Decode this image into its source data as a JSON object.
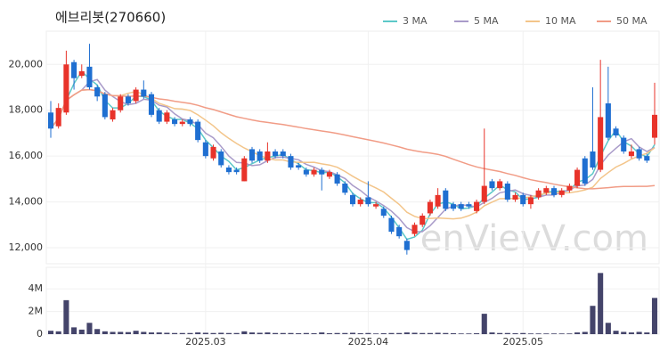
{
  "chart_data": {
    "type": "candlestick",
    "title": "에브리봇(270660)",
    "watermark": "enVievV.com",
    "categories": [
      null,
      null,
      null,
      null,
      null,
      null,
      null,
      null,
      null,
      null,
      null,
      null,
      null,
      null,
      null,
      null,
      null,
      null,
      null,
      null,
      "2025.03",
      null,
      null,
      null,
      null,
      null,
      null,
      null,
      null,
      null,
      null,
      null,
      null,
      null,
      null,
      null,
      null,
      null,
      null,
      null,
      null,
      "2025.04",
      null,
      null,
      null,
      null,
      null,
      null,
      null,
      null,
      null,
      null,
      null,
      null,
      null,
      null,
      null,
      null,
      null,
      null,
      null,
      "2025.05",
      null,
      null,
      null,
      null,
      null,
      null,
      null,
      null,
      null,
      null,
      null,
      null,
      null,
      null,
      null,
      null,
      null
    ],
    "open": [
      17900,
      17300,
      17900,
      20100,
      19500,
      19900,
      19000,
      18700,
      17600,
      18000,
      18600,
      18400,
      18900,
      18700,
      18000,
      17500,
      17600,
      17400,
      17600,
      17500,
      16600,
      15900,
      16200,
      15500,
      15400,
      14900,
      16300,
      16200,
      15800,
      16200,
      16200,
      16000,
      15600,
      15400,
      15200,
      15400,
      15100,
      15200,
      14800,
      14300,
      13900,
      14200,
      13800,
      13700,
      13300,
      12900,
      12300,
      12600,
      13000,
      13500,
      13800,
      14500,
      13900,
      13900,
      13900,
      13600,
      14000,
      14900,
      14600,
      14800,
      14100,
      14300,
      13900,
      14200,
      14400,
      14600,
      14300,
      14500,
      14700,
      15900,
      16200,
      15400,
      18300,
      17200,
      16800,
      16000,
      16300,
      16000,
      16800
    ],
    "close": [
      17200,
      18100,
      20000,
      19400,
      19700,
      19000,
      18600,
      17700,
      18000,
      18600,
      18300,
      18900,
      18600,
      17800,
      17500,
      17900,
      17400,
      17500,
      17400,
      16700,
      16000,
      16400,
      15600,
      15300,
      15300,
      15900,
      15800,
      15800,
      16200,
      16000,
      16000,
      15500,
      15500,
      15200,
      15400,
      15200,
      15300,
      14800,
      14400,
      13900,
      14100,
      13900,
      13900,
      13400,
      12700,
      12500,
      11900,
      13000,
      13400,
      14000,
      14300,
      13700,
      13700,
      13700,
      13800,
      14000,
      14700,
      14600,
      14900,
      14100,
      14300,
      13900,
      14200,
      14500,
      14600,
      14300,
      14500,
      14700,
      15400,
      14800,
      15500,
      17700,
      16800,
      16900,
      16200,
      16200,
      15900,
      15800,
      17800
    ],
    "high": [
      18400,
      18300,
      20600,
      20200,
      20000,
      20900,
      19100,
      18800,
      18100,
      18700,
      18700,
      19000,
      19300,
      18800,
      18100,
      18000,
      17700,
      17600,
      17700,
      17600,
      16700,
      16500,
      16300,
      15600,
      15500,
      16000,
      16400,
      16300,
      16600,
      16300,
      16300,
      16100,
      15700,
      15500,
      15500,
      15500,
      15400,
      15300,
      14900,
      14400,
      14200,
      14900,
      14000,
      13800,
      13400,
      13000,
      12400,
      13100,
      13500,
      14100,
      14600,
      14600,
      14000,
      14000,
      14000,
      14100,
      17200,
      15000,
      15000,
      14900,
      14400,
      14400,
      14300,
      14600,
      14700,
      14700,
      14600,
      14800,
      15500,
      16000,
      19000,
      20200,
      19900,
      17300,
      16900,
      16500,
      16400,
      16100,
      19200
    ],
    "low": [
      16800,
      17200,
      17800,
      18900,
      19400,
      18900,
      18400,
      17600,
      17500,
      17900,
      18200,
      18300,
      18500,
      17700,
      17400,
      17400,
      17300,
      17300,
      17300,
      16600,
      15900,
      15800,
      15500,
      15200,
      15200,
      14900,
      15700,
      15700,
      15700,
      15900,
      15900,
      15400,
      15400,
      15100,
      15100,
      14500,
      15000,
      14700,
      14300,
      13800,
      13800,
      13800,
      13700,
      13300,
      12600,
      12400,
      11700,
      12500,
      12900,
      13400,
      13700,
      13600,
      13600,
      13600,
      13700,
      13500,
      13900,
      14500,
      14500,
      14000,
      14000,
      13800,
      13700,
      14100,
      14300,
      14200,
      14200,
      14400,
      14600,
      14700,
      15400,
      15300,
      16700,
      16800,
      16100,
      15900,
      15800,
      15700,
      16500
    ],
    "up_color": "#e8332a",
    "down_color": "#1f6fd1",
    "ylim": [
      11300,
      21450
    ],
    "yticks": [
      {
        "value": 12000,
        "label": "12,000"
      },
      {
        "value": 14000,
        "label": "14,000"
      },
      {
        "value": 16000,
        "label": "16,000"
      },
      {
        "value": 18000,
        "label": "18,000"
      },
      {
        "value": 20000,
        "label": "20,000"
      }
    ],
    "grid": true,
    "moving_averages": [
      {
        "name": "3 MA",
        "window": 3,
        "color": "#5cc8c8"
      },
      {
        "name": "5 MA",
        "window": 5,
        "color": "#a99bc9"
      },
      {
        "name": "10 MA",
        "window": 10,
        "color": "#f3c58a"
      },
      {
        "name": "50 MA",
        "window": 50,
        "color": "#f19c86"
      }
    ],
    "volume": {
      "values": [
        300000,
        250000,
        3000000,
        600000,
        400000,
        1000000,
        450000,
        250000,
        200000,
        200000,
        180000,
        300000,
        200000,
        150000,
        150000,
        120000,
        100000,
        100000,
        100000,
        150000,
        120000,
        100000,
        120000,
        100000,
        100000,
        250000,
        150000,
        120000,
        150000,
        100000,
        100000,
        100000,
        80000,
        100000,
        80000,
        150000,
        80000,
        100000,
        100000,
        120000,
        80000,
        100000,
        60000,
        80000,
        100000,
        100000,
        150000,
        120000,
        100000,
        100000,
        120000,
        100000,
        80000,
        60000,
        60000,
        80000,
        1800000,
        150000,
        100000,
        100000,
        80000,
        100000,
        60000,
        60000,
        60000,
        60000,
        60000,
        60000,
        150000,
        200000,
        2500000,
        5400000,
        1000000,
        300000,
        200000,
        150000,
        200000,
        150000,
        3200000
      ],
      "color": "#44446a",
      "ylim": [
        0,
        5900000
      ],
      "yticks": [
        0,
        {
          "value": 2000000,
          "label": "2M"
        },
        {
          "value": 4000000,
          "label": "4M"
        }
      ]
    }
  }
}
